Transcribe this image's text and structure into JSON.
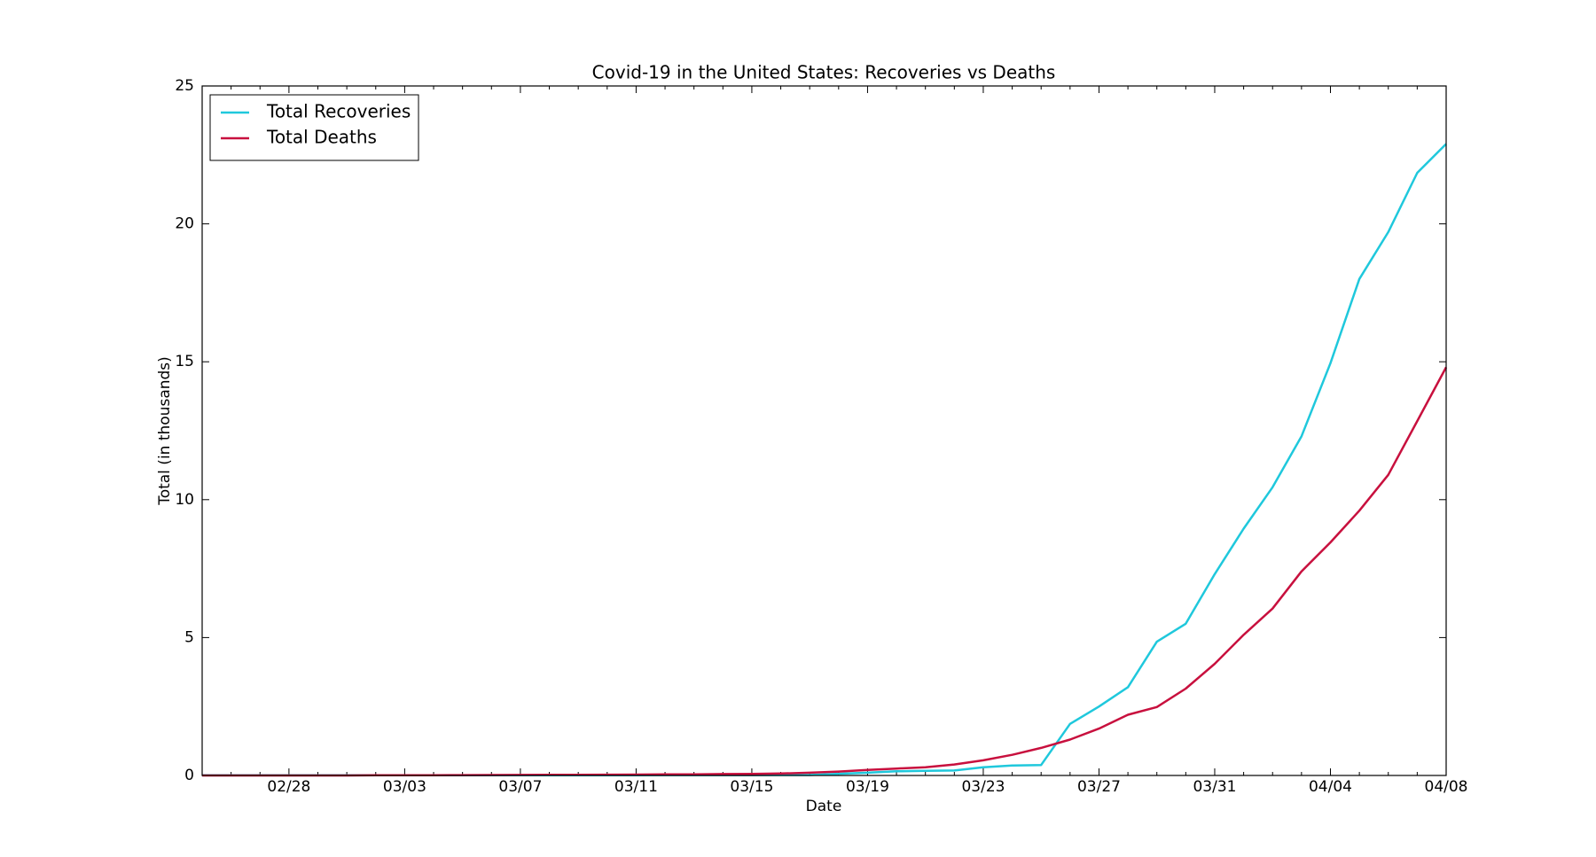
{
  "chart_data": {
    "type": "line",
    "title": "Covid-19 in the United States: Recoveries vs Deaths",
    "x_label": "Date",
    "y_label": "Total (in thousands)",
    "categories": [
      null,
      null,
      null,
      "02/28",
      null,
      null,
      null,
      "03/03",
      null,
      null,
      null,
      "03/07",
      null,
      null,
      null,
      "03/11",
      null,
      null,
      null,
      "03/15",
      null,
      null,
      null,
      "03/19",
      null,
      null,
      null,
      "03/23",
      null,
      null,
      null,
      "03/27",
      null,
      null,
      null,
      "03/31",
      null,
      null,
      null,
      "04/04",
      null,
      null,
      null,
      "04/08"
    ],
    "series": [
      {
        "name": "Total Recoveries",
        "color": "#1fc8dc",
        "values": [
          0.006,
          0.006,
          0.007,
          0.007,
          0.007,
          0.007,
          0.007,
          0.007,
          0.007,
          0.007,
          0.007,
          0.007,
          0.008,
          0.008,
          0.008,
          0.008,
          0.012,
          0.012,
          0.012,
          0.012,
          0.017,
          0.017,
          0.06,
          0.1,
          0.15,
          0.17,
          0.18,
          0.3,
          0.36,
          0.38,
          1.87,
          2.5,
          3.2,
          4.85,
          5.5,
          7.3,
          8.95,
          10.45,
          12.3,
          14.95,
          18.0,
          19.7,
          21.85,
          22.9
        ]
      },
      {
        "name": "Total Deaths",
        "color": "#c8103e",
        "values": [
          0,
          0,
          0,
          0.001,
          0.001,
          0.001,
          0.006,
          0.009,
          0.011,
          0.012,
          0.015,
          0.019,
          0.022,
          0.026,
          0.03,
          0.031,
          0.038,
          0.041,
          0.05,
          0.058,
          0.07,
          0.1,
          0.14,
          0.2,
          0.25,
          0.3,
          0.4,
          0.55,
          0.75,
          1.0,
          1.3,
          1.7,
          2.2,
          2.48,
          3.15,
          4.05,
          5.1,
          6.05,
          7.4,
          8.45,
          9.6,
          10.9,
          12.85,
          14.8
        ]
      }
    ],
    "ylim": [
      0,
      25
    ],
    "yticks": [
      0,
      5,
      10,
      15,
      20,
      25
    ],
    "legend": "upper left",
    "grid": false
  }
}
